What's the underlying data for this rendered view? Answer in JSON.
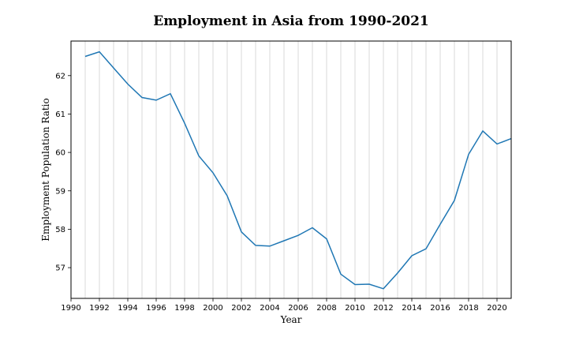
{
  "chart_data": {
    "type": "line",
    "title": "Employment in Asia from 1990-2021",
    "xlabel": "Year",
    "ylabel": "Employment Population Ratio",
    "xlim": [
      1990,
      2021
    ],
    "ylim": [
      56.2,
      62.9
    ],
    "xticks": [
      1990,
      1992,
      1994,
      1996,
      1998,
      2000,
      2002,
      2004,
      2006,
      2008,
      2010,
      2012,
      2014,
      2016,
      2018,
      2020
    ],
    "yticks": [
      57,
      58,
      59,
      60,
      61,
      62
    ],
    "grid": "vertical lines every year",
    "legend": "none",
    "line_color": "#1f77b4",
    "series": [
      {
        "x": [
          1991,
          1992,
          1993,
          1994,
          1995,
          1996,
          1997,
          1998,
          1999,
          2000,
          2001,
          2002,
          2003,
          2004,
          2005,
          2006,
          2007,
          2008,
          2009,
          2010,
          2011,
          2012,
          2013,
          2014,
          2015,
          2016,
          2017,
          2018,
          2019,
          2020,
          2021
        ],
        "values": [
          62.5,
          62.62,
          62.2,
          61.78,
          61.43,
          61.36,
          61.53,
          60.76,
          59.91,
          59.47,
          58.87,
          57.93,
          57.58,
          57.56,
          57.7,
          57.84,
          58.04,
          57.75,
          56.83,
          56.56,
          56.57,
          56.45,
          56.86,
          57.31,
          57.49,
          58.13,
          58.75,
          59.95,
          60.56,
          60.22,
          60.36
        ]
      }
    ]
  }
}
